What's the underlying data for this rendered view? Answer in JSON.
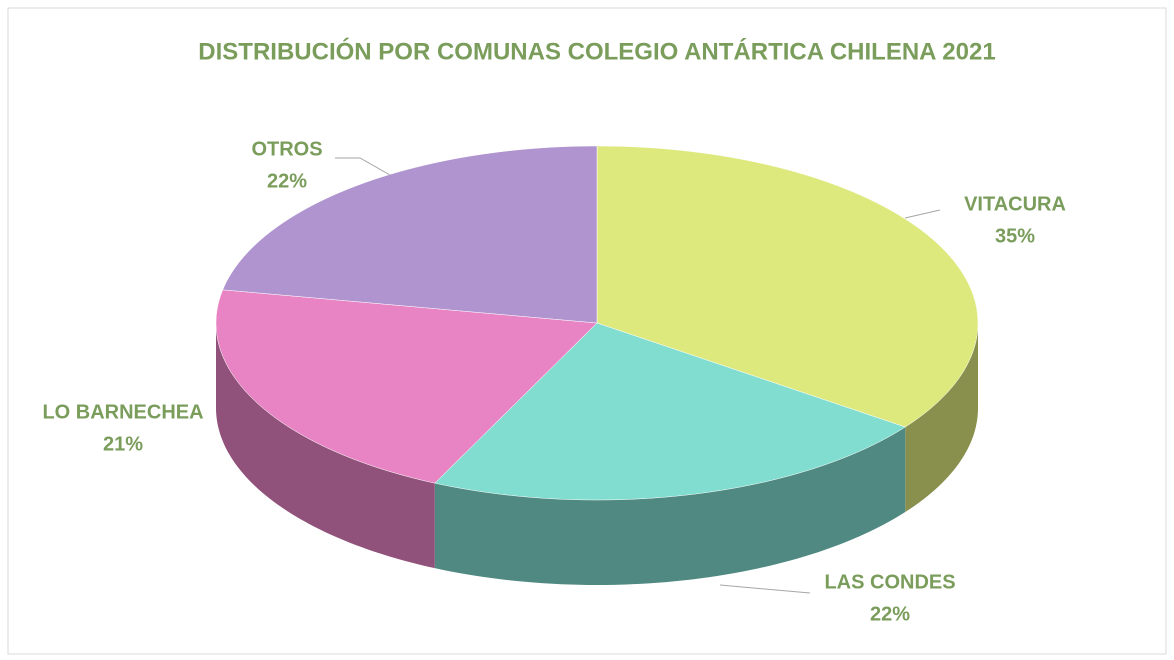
{
  "chart_data": {
    "type": "pie",
    "title": "DISTRIBUCIÓN POR COMUNAS COLEGIO ANTÁRTICA CHILENA 2021",
    "categories": [
      "VITACURA",
      "LAS CONDES",
      "LO BARNECHEA",
      "OTROS"
    ],
    "values": [
      35,
      22,
      21,
      22
    ],
    "value_labels": [
      "35%",
      "22%",
      "21%",
      "22%"
    ],
    "colors": [
      "#dde97c",
      "#80ddd0",
      "#e884c4",
      "#b094cf"
    ]
  }
}
